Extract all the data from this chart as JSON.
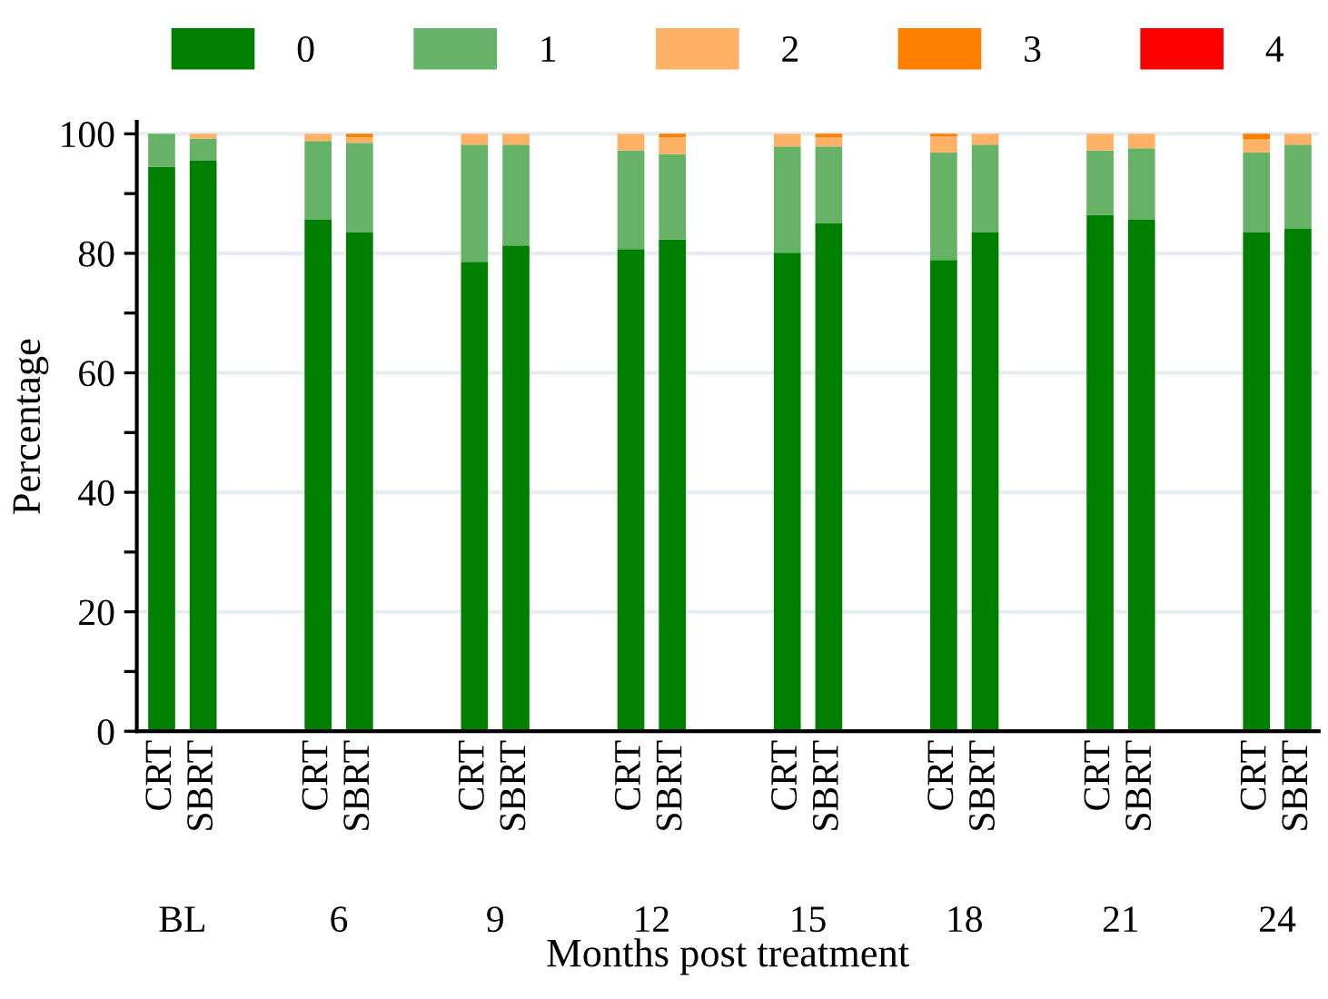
{
  "chart_data": {
    "type": "bar",
    "stacked": true,
    "xlabel": "Months post treatment",
    "ylabel": "Percentage",
    "categories": [
      "CRT",
      "SBRT",
      "CRT",
      "SBRT",
      "CRT",
      "SBRT",
      "CRT",
      "SBRT",
      "CRT",
      "SBRT",
      "CRT",
      "SBRT",
      "CRT",
      "SBRT",
      "CRT",
      "SBRT"
    ],
    "annotations": [
      "BL",
      "6",
      "9",
      "12",
      "15",
      "18",
      "21",
      "24"
    ],
    "series": [
      {
        "name": "0",
        "color": "#008000",
        "values": [
          94.5,
          95.5,
          85.6,
          83.5,
          78.6,
          81.3,
          80.7,
          82.3,
          80.1,
          85.0,
          78.9,
          83.5,
          86.4,
          85.6,
          83.5,
          84.1
        ]
      },
      {
        "name": "1",
        "color": "#66b266",
        "values": [
          5.5,
          3.7,
          13.2,
          15.0,
          19.6,
          16.9,
          16.5,
          14.3,
          17.8,
          12.9,
          18.0,
          14.7,
          10.8,
          12.0,
          13.4,
          14.1
        ]
      },
      {
        "name": "2",
        "color": "#ffb266",
        "values": [
          0,
          0.8,
          1.2,
          0.9,
          1.8,
          1.8,
          2.8,
          2.8,
          2.1,
          1.5,
          2.7,
          1.8,
          2.8,
          2.4,
          2.2,
          1.8
        ]
      },
      {
        "name": "3",
        "color": "#ff8000",
        "values": [
          0,
          0,
          0,
          0.6,
          0,
          0,
          0,
          0.6,
          0,
          0.6,
          0.4,
          0,
          0,
          0,
          0.9,
          0
        ]
      },
      {
        "name": "4",
        "color": "#ff0000",
        "values": [
          0,
          0,
          0,
          0,
          0,
          0,
          0,
          0,
          0,
          0,
          0,
          0,
          0,
          0,
          0,
          0
        ]
      }
    ],
    "ylim": [
      0,
      102
    ],
    "yticks": [
      0,
      {
        "value": 10,
        "label": null
      },
      20,
      {
        "value": 30,
        "label": null
      },
      40,
      {
        "value": 50,
        "label": null
      },
      60,
      {
        "value": 70,
        "label": null
      },
      80,
      {
        "value": 90,
        "label": null
      },
      100
    ],
    "grid": "y",
    "legend": "top"
  }
}
